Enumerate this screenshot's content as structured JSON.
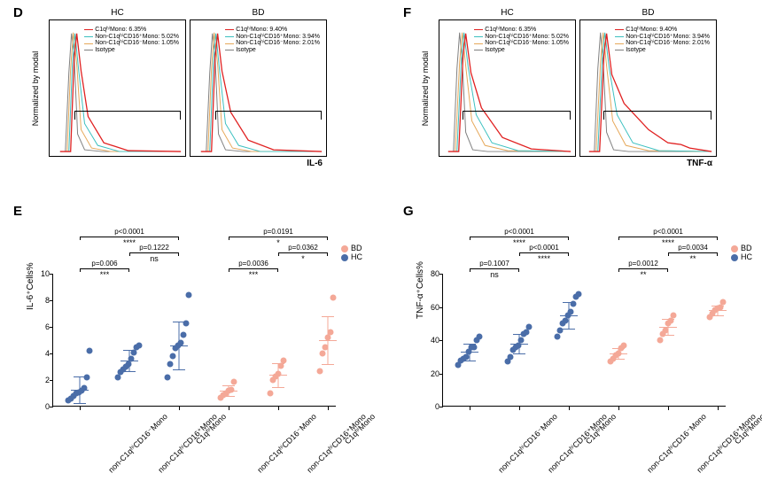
{
  "colors": {
    "red": "#e02020",
    "cyan": "#3cc0c0",
    "orange": "#e6a85a",
    "grey": "#808080",
    "bd_point": "#f4a897",
    "hc_point": "#4a6da8"
  },
  "panelD": {
    "label": "D",
    "ylabel": "Normalized by modal",
    "xlabel": "IL-6",
    "hc": {
      "title": "HC",
      "legend": [
        {
          "label": "C1qʰⁱMono: 6.35%",
          "color": "red"
        },
        {
          "label": "Non-C1qʰⁱCD16⁺Mono: 5.02%",
          "color": "cyan"
        },
        {
          "label": "Non-C1qʰⁱCD16⁻Mono: 1.05%",
          "color": "orange"
        },
        {
          "label": "Isotype",
          "color": "grey"
        }
      ]
    },
    "bd": {
      "title": "BD",
      "legend": [
        {
          "label": "C1qʰⁱMono: 9.40%",
          "color": "red"
        },
        {
          "label": "Non-C1qʰⁱCD16⁺Mono: 3.94%",
          "color": "cyan"
        },
        {
          "label": "Non-C1qʰⁱCD16⁻Mono: 2.01%",
          "color": "orange"
        },
        {
          "label": "Isotype",
          "color": "grey"
        }
      ]
    }
  },
  "panelF": {
    "label": "F",
    "ylabel": "Normalized by modal",
    "xlabel": "TNF-α",
    "hc": {
      "title": "HC",
      "legend": [
        {
          "label": "C1qʰⁱMono: 6.35%",
          "color": "red"
        },
        {
          "label": "Non-C1qʰⁱCD16⁺Mono: 5.02%",
          "color": "cyan"
        },
        {
          "label": "Non-C1qʰⁱCD16⁻Mono: 1.05%",
          "color": "orange"
        },
        {
          "label": "Isotype",
          "color": "grey"
        }
      ]
    },
    "bd": {
      "title": "BD",
      "legend": [
        {
          "label": "C1qʰⁱMono: 9.40%",
          "color": "red"
        },
        {
          "label": "Non-C1qʰⁱCD16⁺Mono: 3.94%",
          "color": "cyan"
        },
        {
          "label": "Non-C1qʰⁱCD16⁻Mono: 2.01%",
          "color": "orange"
        },
        {
          "label": "Isotype",
          "color": "grey"
        }
      ]
    }
  },
  "panelE": {
    "label": "E",
    "ylabel": "IL-6⁺Cells%",
    "ylim": [
      0,
      10
    ],
    "ytick_step": 2,
    "categories": [
      "non-C1qʰⁱCD16⁻Mono",
      "non-C1qʰⁱCD16⁺Mono",
      "C1qʰⁱMono",
      "non-C1qʰⁱCD16⁻Mono",
      "non-C1qʰⁱCD16⁺Mono",
      "C1qʰⁱMono"
    ],
    "group_color": [
      "hc_point",
      "hc_point",
      "hc_point",
      "bd_point",
      "bd_point",
      "bd_point"
    ],
    "points": [
      [
        0.5,
        0.6,
        0.8,
        1.0,
        1.1,
        1.2,
        1.4,
        2.2,
        4.2
      ],
      [
        2.2,
        2.6,
        2.8,
        3.0,
        3.2,
        3.6,
        4.1,
        4.5,
        4.6
      ],
      [
        2.2,
        3.2,
        3.8,
        4.4,
        4.6,
        4.8,
        5.4,
        6.3,
        8.4
      ],
      [
        0.7,
        0.9,
        1.0,
        1.2,
        1.3,
        1.9
      ],
      [
        1.0,
        2.0,
        2.3,
        2.5,
        3.1,
        3.5
      ],
      [
        2.7,
        4.0,
        4.5,
        5.2,
        5.6,
        8.2
      ]
    ],
    "mean": [
      1.3,
      3.5,
      4.6,
      1.2,
      2.4,
      5.0
    ],
    "sd": [
      1.0,
      0.8,
      1.8,
      0.4,
      0.9,
      1.8
    ],
    "stats": [
      {
        "a": 0,
        "b": 1,
        "p": "p=0.006",
        "stars": "***",
        "level": 0
      },
      {
        "a": 1,
        "b": 2,
        "p": "p=0.1222",
        "stars": "ns",
        "level": 1
      },
      {
        "a": 0,
        "b": 2,
        "p": "p<0.0001",
        "stars": "****",
        "level": 2
      },
      {
        "a": 3,
        "b": 4,
        "p": "p=0.0036",
        "stars": "***",
        "level": 0
      },
      {
        "a": 4,
        "b": 5,
        "p": "p=0.0362",
        "stars": "*",
        "level": 1
      },
      {
        "a": 3,
        "b": 5,
        "p": "p=0.0191",
        "stars": "*",
        "level": 2
      }
    ],
    "side_legend": [
      {
        "label": "BD",
        "color": "bd_point"
      },
      {
        "label": "HC",
        "color": "hc_point"
      }
    ]
  },
  "panelG": {
    "label": "G",
    "ylabel": "TNF-α⁺Cells%",
    "ylim": [
      0,
      80
    ],
    "ytick_step": 20,
    "categories": [
      "non-C1qʰⁱCD16⁻Mono",
      "non-C1qʰⁱCD16⁺Mono",
      "C1qʰⁱMono",
      "non-C1qʰⁱCD16⁻Mono",
      "non-C1qʰⁱCD16⁺Mono",
      "C1qʰⁱMono"
    ],
    "group_color": [
      "hc_point",
      "hc_point",
      "hc_point",
      "bd_point",
      "bd_point",
      "bd_point"
    ],
    "points": [
      [
        25,
        28,
        29,
        30,
        33,
        36,
        36,
        40,
        42
      ],
      [
        27,
        30,
        34,
        36,
        37,
        40,
        44,
        45,
        48
      ],
      [
        42,
        46,
        50,
        52,
        55,
        57,
        62,
        66,
        68
      ],
      [
        27,
        29,
        31,
        32,
        35,
        37
      ],
      [
        40,
        44,
        46,
        50,
        52,
        55
      ],
      [
        54,
        56,
        58,
        59,
        60,
        63
      ]
    ],
    "mean": [
      33,
      38,
      55,
      32,
      48,
      58
    ],
    "sd": [
      5,
      6,
      8,
      3,
      5,
      3
    ],
    "stats": [
      {
        "a": 0,
        "b": 1,
        "p": "p=0.1007",
        "stars": "ns",
        "level": 0
      },
      {
        "a": 1,
        "b": 2,
        "p": "p<0.0001",
        "stars": "****",
        "level": 1
      },
      {
        "a": 0,
        "b": 2,
        "p": "p<0.0001",
        "stars": "****",
        "level": 2
      },
      {
        "a": 3,
        "b": 4,
        "p": "p=0.0012",
        "stars": "**",
        "level": 0
      },
      {
        "a": 4,
        "b": 5,
        "p": "p=0.0034",
        "stars": "**",
        "level": 1
      },
      {
        "a": 3,
        "b": 5,
        "p": "p<0.0001",
        "stars": "****",
        "level": 2
      }
    ],
    "side_legend": [
      {
        "label": "BD",
        "color": "bd_point"
      },
      {
        "label": "HC",
        "color": "hc_point"
      }
    ]
  },
  "layout": {
    "panel_label_fontsize": 15,
    "histo_height": 155
  }
}
